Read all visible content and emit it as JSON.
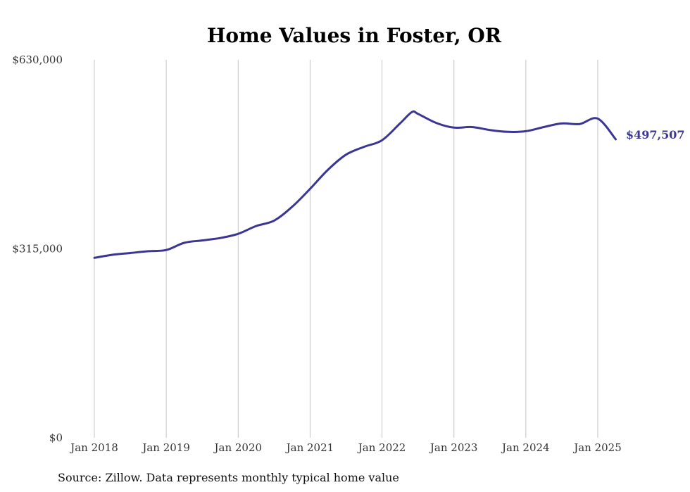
{
  "chart_data": {
    "type": "line",
    "title": "Home Values in Foster, OR",
    "source": "Source: Zillow. Data represents monthly typical home value",
    "ylim": [
      0,
      630000
    ],
    "y_ticks": [
      {
        "value": 0,
        "label": "$0"
      },
      {
        "value": 315000,
        "label": "$315,000"
      },
      {
        "value": 630000,
        "label": "$630,000"
      }
    ],
    "x_ticks": [
      {
        "value": "2018-01",
        "label": "Jan 2018"
      },
      {
        "value": "2019-01",
        "label": "Jan 2019"
      },
      {
        "value": "2020-01",
        "label": "Jan 2020"
      },
      {
        "value": "2021-01",
        "label": "Jan 2021"
      },
      {
        "value": "2022-01",
        "label": "Jan 2022"
      },
      {
        "value": "2023-01",
        "label": "Jan 2023"
      },
      {
        "value": "2024-01",
        "label": "Jan 2024"
      },
      {
        "value": "2025-01",
        "label": "Jan 2025"
      }
    ],
    "grid": {
      "vertical": true,
      "horizontal": false
    },
    "line_color": "#3b3593",
    "end_label": "$497,507",
    "series": [
      {
        "x": [
          "2018-01",
          "2018-04",
          "2018-07",
          "2018-10",
          "2019-01",
          "2019-04",
          "2019-07",
          "2019-10",
          "2020-01",
          "2020-04",
          "2020-07",
          "2020-10",
          "2021-01",
          "2021-04",
          "2021-07",
          "2021-10",
          "2022-01",
          "2022-04",
          "2022-06",
          "2022-07",
          "2022-10",
          "2023-01",
          "2023-04",
          "2023-07",
          "2023-10",
          "2024-01",
          "2024-04",
          "2024-07",
          "2024-10",
          "2025-01",
          "2025-04"
        ],
        "values": [
          300000,
          305000,
          308000,
          311000,
          313000,
          325000,
          329000,
          333000,
          340000,
          353000,
          362000,
          385000,
          415000,
          447000,
          472000,
          485000,
          496000,
          524000,
          543000,
          540000,
          525000,
          517000,
          518000,
          513000,
          510000,
          511000,
          518000,
          524000,
          523000,
          532000,
          497507
        ]
      }
    ]
  }
}
